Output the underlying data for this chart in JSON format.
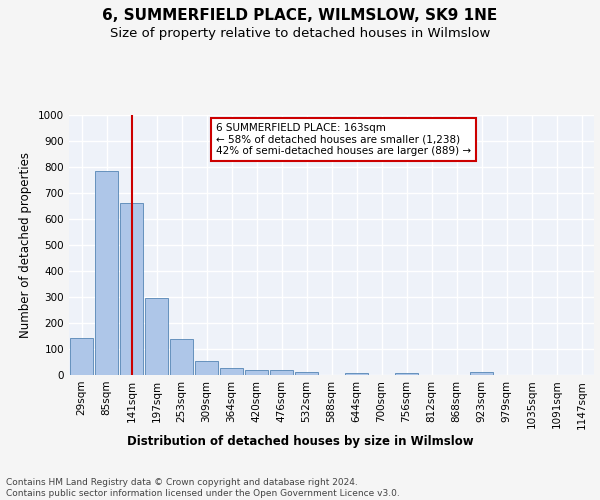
{
  "title": "6, SUMMERFIELD PLACE, WILMSLOW, SK9 1NE",
  "subtitle": "Size of property relative to detached houses in Wilmslow",
  "xlabel": "Distribution of detached houses by size in Wilmslow",
  "ylabel": "Number of detached properties",
  "bin_labels": [
    "29sqm",
    "85sqm",
    "141sqm",
    "197sqm",
    "253sqm",
    "309sqm",
    "364sqm",
    "420sqm",
    "476sqm",
    "532sqm",
    "588sqm",
    "644sqm",
    "700sqm",
    "756sqm",
    "812sqm",
    "868sqm",
    "923sqm",
    "979sqm",
    "1035sqm",
    "1091sqm",
    "1147sqm"
  ],
  "bar_values": [
    143,
    783,
    660,
    295,
    137,
    55,
    28,
    20,
    20,
    13,
    0,
    7,
    0,
    7,
    0,
    0,
    13,
    0,
    0,
    0,
    0
  ],
  "bar_color": "#aec6e8",
  "bar_edge_color": "#5585b5",
  "vline_x": 2,
  "vline_color": "#cc0000",
  "annotation_text": "6 SUMMERFIELD PLACE: 163sqm\n← 58% of detached houses are smaller (1,238)\n42% of semi-detached houses are larger (889) →",
  "annotation_box_color": "#ffffff",
  "annotation_box_edge": "#cc0000",
  "ylim": [
    0,
    1000
  ],
  "yticks": [
    0,
    100,
    200,
    300,
    400,
    500,
    600,
    700,
    800,
    900,
    1000
  ],
  "background_color": "#eef2f9",
  "grid_color": "#ffffff",
  "fig_background": "#f5f5f5",
  "footer_text": "Contains HM Land Registry data © Crown copyright and database right 2024.\nContains public sector information licensed under the Open Government Licence v3.0.",
  "title_fontsize": 11,
  "subtitle_fontsize": 9.5,
  "axis_label_fontsize": 8.5,
  "tick_fontsize": 7.5,
  "annotation_fontsize": 7.5,
  "footer_fontsize": 6.5
}
